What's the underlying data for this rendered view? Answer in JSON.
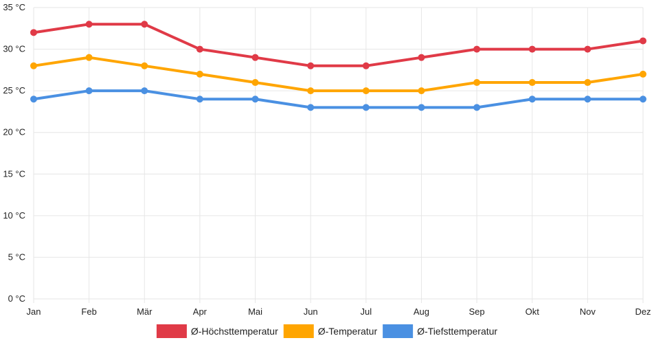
{
  "chart_data": {
    "type": "line",
    "title": "",
    "xlabel": "",
    "ylabel": "",
    "categories": [
      "Jan",
      "Feb",
      "Mär",
      "Apr",
      "Mai",
      "Jun",
      "Jul",
      "Aug",
      "Sep",
      "Okt",
      "Nov",
      "Dez"
    ],
    "ylim": [
      0,
      35
    ],
    "yticks": [
      0,
      5,
      10,
      15,
      20,
      25,
      30,
      35
    ],
    "y_unit": " °C",
    "grid": true,
    "legend_position": "bottom",
    "series": [
      {
        "name": "Ø-Höchsttemperatur",
        "color": "#e03a47",
        "values": [
          32,
          33,
          33,
          30,
          29,
          28,
          28,
          29,
          30,
          30,
          30,
          31
        ]
      },
      {
        "name": "Ø-Temperatur",
        "color": "#ffa500",
        "values": [
          28,
          29,
          28,
          27,
          26,
          25,
          25,
          25,
          26,
          26,
          26,
          27
        ]
      },
      {
        "name": "Ø-Tiefsttemperatur",
        "color": "#4a90e2",
        "values": [
          24,
          25,
          25,
          24,
          24,
          23,
          23,
          23,
          23,
          24,
          24,
          24
        ]
      }
    ]
  }
}
